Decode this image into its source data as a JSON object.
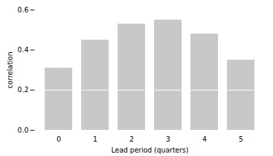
{
  "chart_data": {
    "type": "bar",
    "categories": [
      "0",
      "1",
      "2",
      "3",
      "4",
      "5"
    ],
    "values": [
      0.31,
      0.45,
      0.53,
      0.55,
      0.48,
      0.35
    ],
    "color": "#c8c8c8",
    "divider_line": 0.2,
    "divider_color": "#ffffff",
    "xlabel": "Lead period (quarters)",
    "ylabel": "correlation",
    "ylim": [
      0.0,
      0.6
    ],
    "yticks": [
      {
        "value": 0.0,
        "label": "0.0"
      },
      0.2,
      0.4,
      0.6
    ],
    "grid": false
  }
}
